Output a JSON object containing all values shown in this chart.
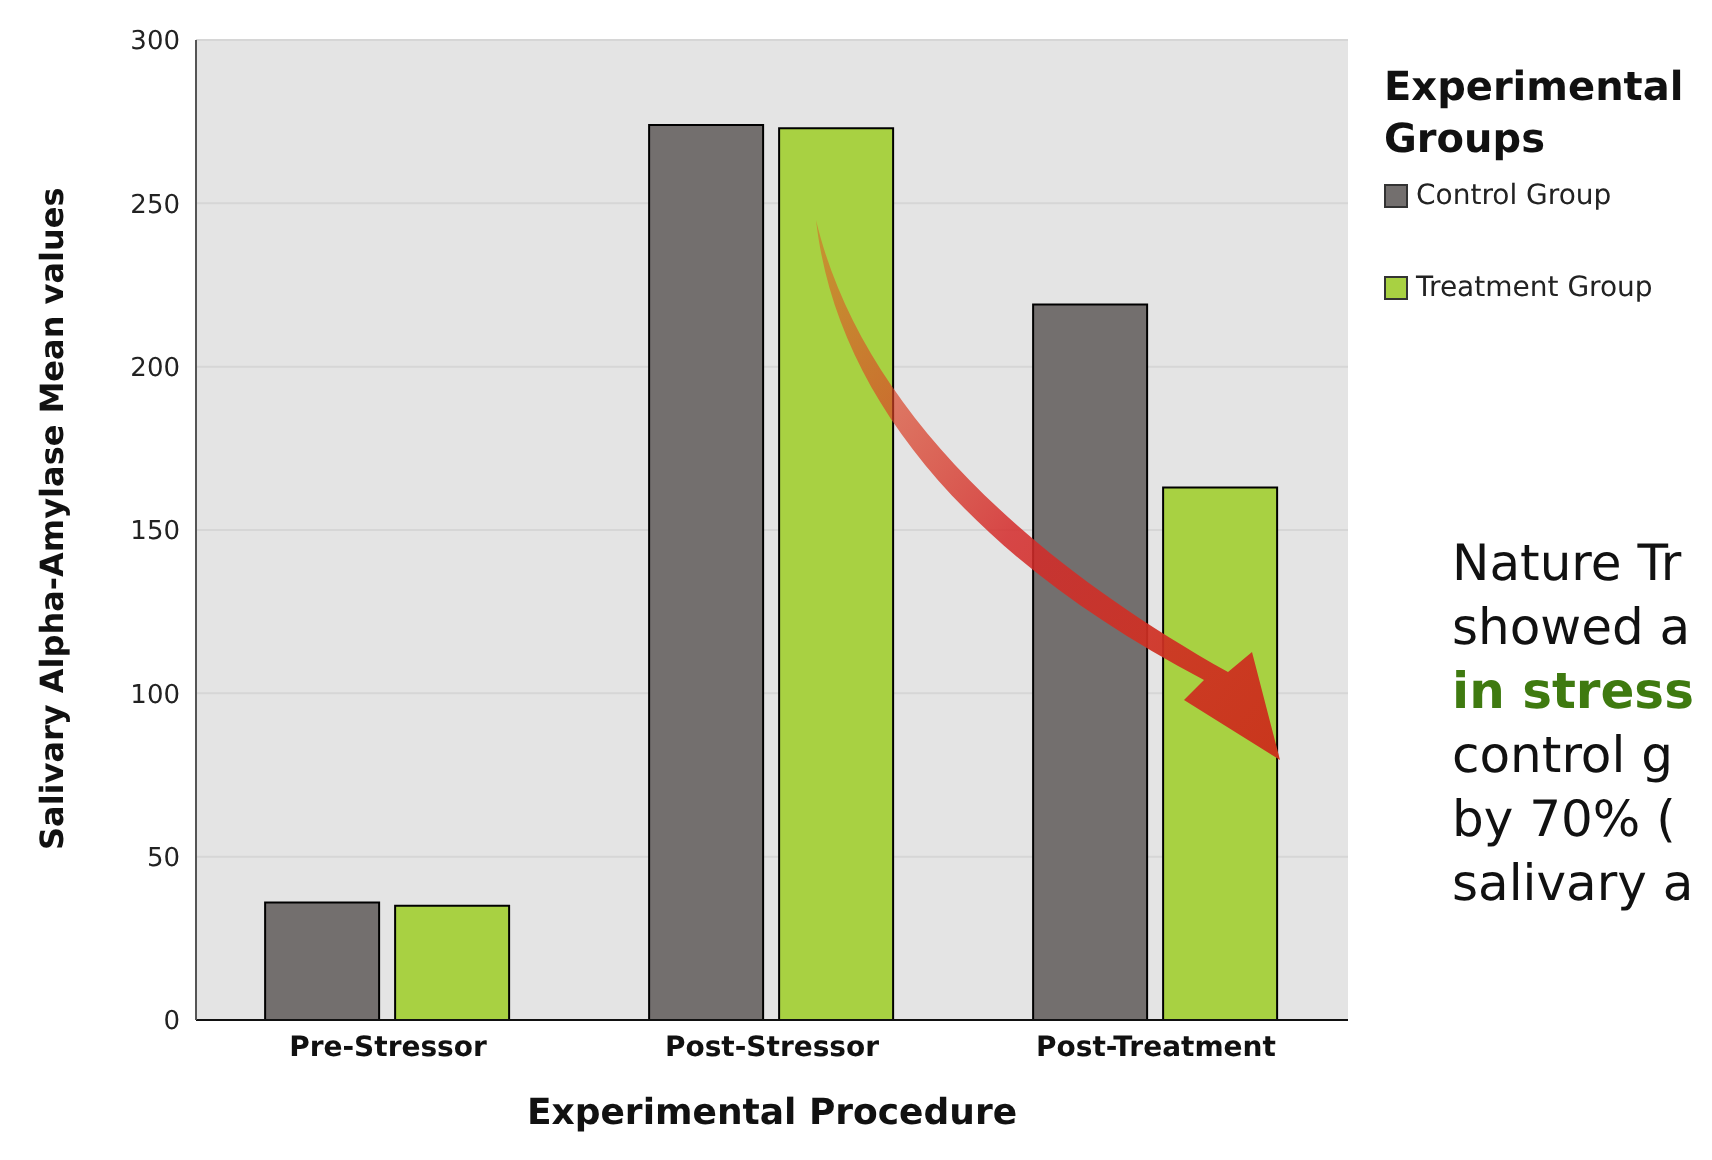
{
  "chart_data": {
    "type": "bar",
    "xlabel": "Experimental Procedure",
    "ylabel": "Salivary Alpha-Amylase Mean values",
    "legend_title": "Experimental Groups",
    "categories": [
      "Pre-Stressor",
      "Post-Stressor",
      "Post-Treatment"
    ],
    "series": [
      {
        "name": "Control Group",
        "color": "#736f6e",
        "values": [
          36,
          274,
          219
        ]
      },
      {
        "name": "Treatment Group",
        "color": "#a8d142",
        "values": [
          35,
          273,
          163
        ]
      }
    ],
    "ylim": [
      0,
      300
    ],
    "yticks": [
      0,
      50,
      100,
      150,
      200,
      250,
      300
    ],
    "grid": "y",
    "legend": "top right",
    "annotations": [
      "Nature Tr",
      "showed a",
      "in stress",
      "control g",
      "by 70% (",
      "salivary a"
    ]
  }
}
